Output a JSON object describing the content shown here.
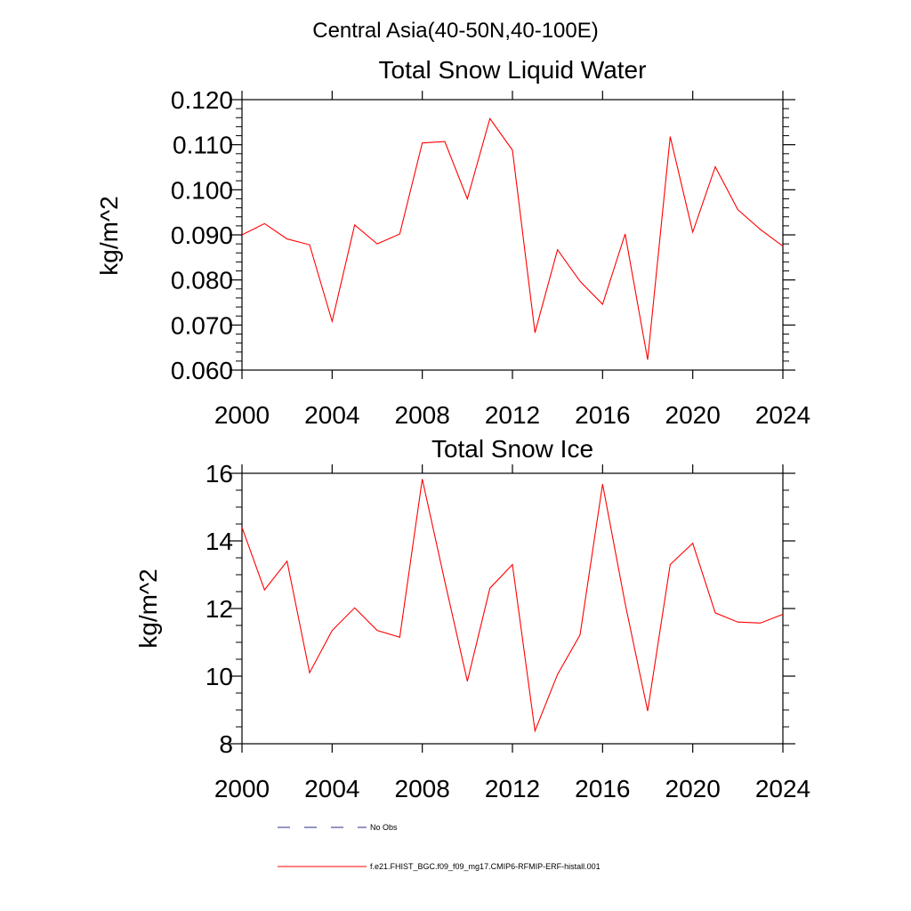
{
  "figure_title": "Central Asia(40-50N,40-100E)",
  "colors": {
    "model_line": "#ff0000",
    "obs_line": "#2b2b8a",
    "axis": "#000000"
  },
  "legend": {
    "obs_label": "No Obs",
    "model_label": "f.e21.FHIST_BGC.f09_f09_mg17.CMIP6-RFMIP-ERF-histall.001"
  },
  "chart_data": [
    {
      "type": "line",
      "title": "Total Snow Liquid Water",
      "xlabel": "",
      "ylabel": "kg/m^2",
      "xlim": [
        2000,
        2024
      ],
      "ylim": [
        0.06,
        0.12
      ],
      "xticks": [
        2000,
        2004,
        2008,
        2012,
        2016,
        2020,
        2024
      ],
      "xtick_labels": [
        "2000",
        "2004",
        "2008",
        "2012",
        "2016",
        "2020",
        "2024"
      ],
      "yticks": [
        0.06,
        0.07,
        0.08,
        0.09,
        0.1,
        0.11,
        0.12
      ],
      "ytick_labels": [
        "0.060",
        "0.070",
        "0.080",
        "0.090",
        "0.100",
        "0.110",
        "0.120"
      ],
      "x": [
        2000,
        2001,
        2002,
        2003,
        2004,
        2005,
        2006,
        2007,
        2008,
        2009,
        2010,
        2011,
        2012,
        2013,
        2014,
        2015,
        2016,
        2017,
        2018,
        2019,
        2020,
        2021,
        2022,
        2023,
        2024
      ],
      "series": [
        {
          "name": "f.e21.FHIST_BGC.f09_f09_mg17.CMIP6-RFMIP-ERF-histall.001",
          "values": [
            0.09,
            0.0925,
            0.0891,
            0.0878,
            0.0708,
            0.0922,
            0.088,
            0.0902,
            0.1104,
            0.1107,
            0.098,
            0.1158,
            0.1088,
            0.0683,
            0.0867,
            0.0797,
            0.0746,
            0.0902,
            0.0623,
            0.1118,
            0.0906,
            0.1051,
            0.0956,
            0.0912,
            0.0875
          ]
        }
      ]
    },
    {
      "type": "line",
      "title": "Total Snow Ice",
      "xlabel": "",
      "ylabel": "kg/m^2",
      "xlim": [
        2000,
        2024
      ],
      "ylim": [
        8,
        16
      ],
      "xticks": [
        2000,
        2004,
        2008,
        2012,
        2016,
        2020,
        2024
      ],
      "xtick_labels": [
        "2000",
        "2004",
        "2008",
        "2012",
        "2016",
        "2020",
        "2024"
      ],
      "yticks": [
        8,
        10,
        12,
        14,
        16
      ],
      "ytick_labels": [
        "8",
        "10",
        "12",
        "14",
        "16"
      ],
      "x": [
        2000,
        2001,
        2002,
        2003,
        2004,
        2005,
        2006,
        2007,
        2008,
        2009,
        2010,
        2011,
        2012,
        2013,
        2014,
        2015,
        2016,
        2017,
        2018,
        2019,
        2020,
        2021,
        2022,
        2023,
        2024
      ],
      "series": [
        {
          "name": "f.e21.FHIST_BGC.f09_f09_mg17.CMIP6-RFMIP-ERF-histall.001",
          "values": [
            14.4,
            12.55,
            13.4,
            10.1,
            11.35,
            12.02,
            11.35,
            11.15,
            15.83,
            12.8,
            9.85,
            12.6,
            13.3,
            8.38,
            10.05,
            11.22,
            15.68,
            12.15,
            8.97,
            13.3,
            13.93,
            11.87,
            11.6,
            11.57,
            11.83
          ]
        }
      ]
    }
  ]
}
